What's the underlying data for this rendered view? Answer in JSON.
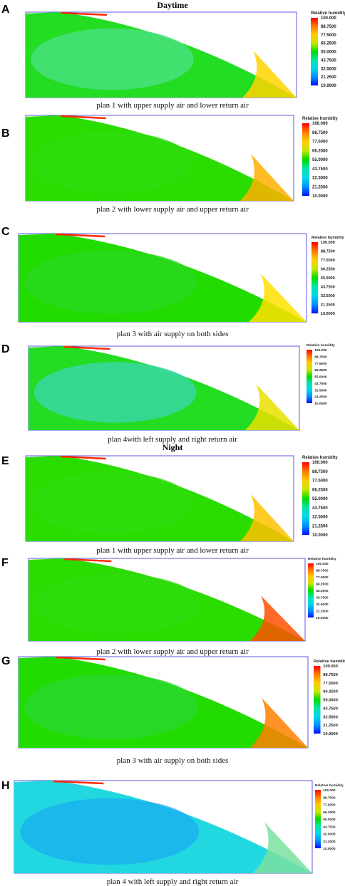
{
  "sections": [
    {
      "title": "Daytime"
    },
    {
      "title": "Night"
    }
  ],
  "legend": {
    "title": "Relative humidity",
    "ticks": [
      "100.000",
      "88.7500",
      "77.5000",
      "66.2500",
      "55.0000",
      "43.7500",
      "32.5000",
      "21.2500",
      "10.0000"
    ],
    "colors": [
      "#ff0000",
      "#ff7a00",
      "#ffcc00",
      "#c8e600",
      "#00dd00",
      "#00e6aa",
      "#00d8e8",
      "#0090ff",
      "#0010ff"
    ]
  },
  "panels": [
    {
      "letter": "A",
      "caption": "plan 1 with upper supply air and lower return air",
      "base": "#22dd22",
      "interior": "#4ee08a",
      "hot": "#ffd400"
    },
    {
      "letter": "B",
      "caption": "plan 2 with lower supply air and upper return air",
      "base": "#2bdc00",
      "interior": "#30dc10",
      "hot": "#ffb000"
    },
    {
      "letter": "C",
      "caption": "plan 3 with air supply on both sides",
      "base": "#22dc00",
      "interior": "#2ad820",
      "hot": "#ffe000"
    },
    {
      "letter": "D",
      "caption": "plan 4with left supply and right return air",
      "base": "#22dd22",
      "interior": "#3ed6b4",
      "hot": "#e8e000"
    },
    {
      "letter": "E",
      "caption": "plan 1 with upper supply air and lower return air",
      "base": "#2bdc00",
      "interior": "#30dc10",
      "hot": "#ffc000"
    },
    {
      "letter": "F",
      "caption": "plan 2 with lower supply air and upper return air",
      "base": "#2bdc00",
      "interior": "#30dc10",
      "hot": "#ff5000"
    },
    {
      "letter": "G",
      "caption": "plan 3 with air supply on both sides",
      "base": "#22dc00",
      "interior": "#2ad830",
      "hot": "#ff8000"
    },
    {
      "letter": "H",
      "caption": "plan 4 with left supply and right return air",
      "base": "#22d8e0",
      "interior": "#1aaef0",
      "hot": "#7ae0a0"
    }
  ]
}
